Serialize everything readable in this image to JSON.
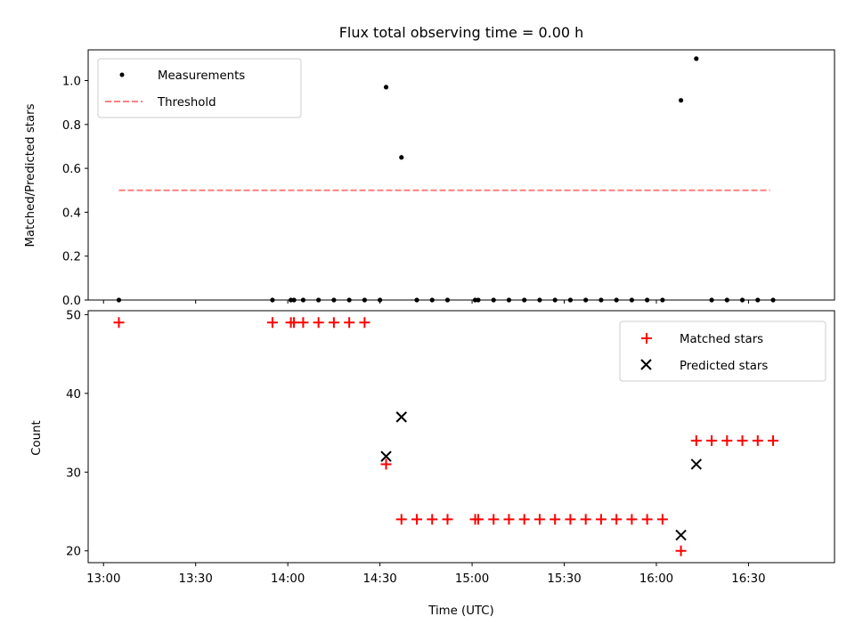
{
  "chart_data": [
    {
      "type": "scatter",
      "title": "Flux total observing time = 0.00 h",
      "xlabel": "",
      "ylabel": "Matched/Predicted stars",
      "ylim": [
        0,
        1.14
      ],
      "yticks": [
        "0.0",
        "0.2",
        "0.4",
        "0.6",
        "0.8",
        "1.0"
      ],
      "xlim": [
        "12:55",
        "16:58"
      ],
      "xtick_labels": [
        "13:00",
        "13:30",
        "14:00",
        "14:30",
        "15:00",
        "15:30",
        "16:00",
        "16:30"
      ],
      "legend_position": "upper-left",
      "series": [
        {
          "name": "Measurements",
          "marker": "dot",
          "color": "#000000",
          "x": [
            "13:05",
            "13:55",
            "14:01",
            "14:02",
            "14:05",
            "14:10",
            "14:15",
            "14:20",
            "14:25",
            "14:30",
            "14:32",
            "14:37",
            "14:42",
            "14:47",
            "14:52",
            "15:01",
            "15:02",
            "15:07",
            "15:12",
            "15:17",
            "15:22",
            "15:27",
            "15:32",
            "15:37",
            "15:42",
            "15:47",
            "15:52",
            "15:57",
            "16:02",
            "16:08",
            "16:13",
            "16:18",
            "16:23",
            "16:28",
            "16:33",
            "16:38"
          ],
          "y": [
            0,
            0,
            0,
            0,
            0,
            0,
            0,
            0,
            0,
            0,
            0.97,
            0.65,
            0,
            0,
            0,
            0,
            0,
            0,
            0,
            0,
            0,
            0,
            0,
            0,
            0,
            0,
            0,
            0,
            0,
            0.91,
            1.1,
            0,
            0,
            0,
            0,
            0
          ]
        },
        {
          "name": "Threshold",
          "marker": "dashed-line",
          "color": "#ff7f7f",
          "x": [
            "13:05",
            "16:37"
          ],
          "y": [
            0.5,
            0.5
          ]
        }
      ]
    },
    {
      "type": "scatter",
      "title": "",
      "xlabel": "Time (UTC)",
      "ylabel": "Count",
      "ylim": [
        18.5,
        50.5
      ],
      "yticks": [
        "20",
        "30",
        "40",
        "50"
      ],
      "xlim": [
        "12:55",
        "16:58"
      ],
      "xtick_labels": [
        "13:00",
        "13:30",
        "14:00",
        "14:30",
        "15:00",
        "15:30",
        "16:00",
        "16:30"
      ],
      "legend_position": "upper-right",
      "series": [
        {
          "name": "Matched stars",
          "marker": "plus",
          "color": "#ff0000",
          "x": [
            "13:05",
            "13:55",
            "14:01",
            "14:02",
            "14:05",
            "14:10",
            "14:15",
            "14:20",
            "14:25",
            "14:32",
            "14:37",
            "14:42",
            "14:47",
            "14:52",
            "15:01",
            "15:02",
            "15:07",
            "15:12",
            "15:17",
            "15:22",
            "15:27",
            "15:32",
            "15:37",
            "15:42",
            "15:47",
            "15:52",
            "15:57",
            "16:02",
            "16:08",
            "16:13",
            "16:18",
            "16:23",
            "16:28",
            "16:33",
            "16:38"
          ],
          "y": [
            49,
            49,
            49,
            49,
            49,
            49,
            49,
            49,
            49,
            31,
            24,
            24,
            24,
            24,
            24,
            24,
            24,
            24,
            24,
            24,
            24,
            24,
            24,
            24,
            24,
            24,
            24,
            24,
            20,
            34,
            34,
            34,
            34,
            34,
            34
          ]
        },
        {
          "name": "Predicted stars",
          "marker": "x",
          "color": "#000000",
          "x": [
            "14:32",
            "14:37",
            "16:08",
            "16:13"
          ],
          "y": [
            32,
            37,
            22,
            31
          ]
        }
      ]
    }
  ]
}
